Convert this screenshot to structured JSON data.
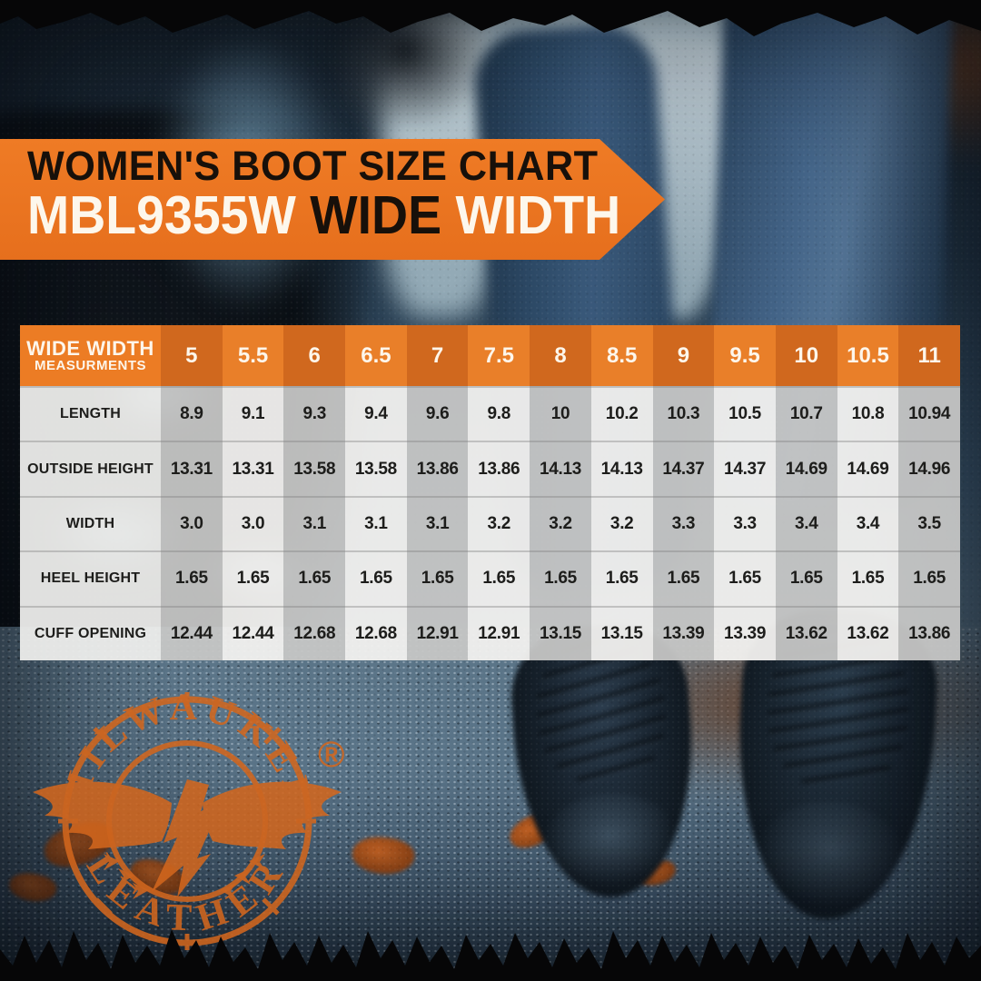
{
  "banner": {
    "title_line1": "WOMEN'S BOOT SIZE CHART",
    "model": "MBL9355W ",
    "highlight": "WIDE ",
    "width_word": "WIDTH"
  },
  "table": {
    "header_label_line1": "WIDE WIDTH",
    "header_label_line2": "MEASURMENTS",
    "sizes": [
      "5",
      "5.5",
      "6",
      "6.5",
      "7",
      "7.5",
      "8",
      "8.5",
      "9",
      "9.5",
      "10",
      "10.5",
      "11"
    ],
    "rows": [
      {
        "label": "LENGTH",
        "values": [
          "8.9",
          "9.1",
          "9.3",
          "9.4",
          "9.6",
          "9.8",
          "10",
          "10.2",
          "10.3",
          "10.5",
          "10.7",
          "10.8",
          "10.94"
        ]
      },
      {
        "label": "OUTSIDE HEIGHT",
        "values": [
          "13.31",
          "13.31",
          "13.58",
          "13.58",
          "13.86",
          "13.86",
          "14.13",
          "14.13",
          "14.37",
          "14.37",
          "14.69",
          "14.69",
          "14.96"
        ]
      },
      {
        "label": "WIDTH",
        "values": [
          "3.0",
          "3.0",
          "3.1",
          "3.1",
          "3.1",
          "3.2",
          "3.2",
          "3.2",
          "3.3",
          "3.3",
          "3.4",
          "3.4",
          "3.5"
        ]
      },
      {
        "label": "HEEL HEIGHT",
        "values": [
          "1.65",
          "1.65",
          "1.65",
          "1.65",
          "1.65",
          "1.65",
          "1.65",
          "1.65",
          "1.65",
          "1.65",
          "1.65",
          "1.65",
          "1.65"
        ]
      },
      {
        "label": "CUFF OPENING",
        "values": [
          "12.44",
          "12.44",
          "12.68",
          "12.68",
          "12.91",
          "12.91",
          "13.15",
          "13.15",
          "13.39",
          "13.39",
          "13.62",
          "13.62",
          "13.86"
        ]
      }
    ]
  },
  "logo": {
    "brand_top": "MILWAUKEE",
    "brand_bottom": "LEATHER",
    "registered": "®"
  },
  "colors": {
    "brand_orange": "#e8731f",
    "header_dark_orange": "#d0681e",
    "header_light_orange": "#e97f29",
    "cell_gray": "#c7c7c6",
    "cell_white": "#f2f1ef",
    "text_dark": "#1d1d1b",
    "banner_text_white": "#fdf7ec"
  },
  "chart_data": {
    "type": "table",
    "title": "WOMEN'S BOOT SIZE CHART MBL9355W WIDE WIDTH",
    "categories": [
      5,
      5.5,
      6,
      6.5,
      7,
      7.5,
      8,
      8.5,
      9,
      9.5,
      10,
      10.5,
      11
    ],
    "categories_label": "WIDE WIDTH MEASURMENTS",
    "series": [
      {
        "name": "LENGTH",
        "values": [
          8.9,
          9.1,
          9.3,
          9.4,
          9.6,
          9.8,
          10,
          10.2,
          10.3,
          10.5,
          10.7,
          10.8,
          10.94
        ]
      },
      {
        "name": "OUTSIDE HEIGHT",
        "values": [
          13.31,
          13.31,
          13.58,
          13.58,
          13.86,
          13.86,
          14.13,
          14.13,
          14.37,
          14.37,
          14.69,
          14.69,
          14.96
        ]
      },
      {
        "name": "WIDTH",
        "values": [
          3.0,
          3.0,
          3.1,
          3.1,
          3.1,
          3.2,
          3.2,
          3.2,
          3.3,
          3.3,
          3.4,
          3.4,
          3.5
        ]
      },
      {
        "name": "HEEL HEIGHT",
        "values": [
          1.65,
          1.65,
          1.65,
          1.65,
          1.65,
          1.65,
          1.65,
          1.65,
          1.65,
          1.65,
          1.65,
          1.65,
          1.65
        ]
      },
      {
        "name": "CUFF OPENING",
        "values": [
          12.44,
          12.44,
          12.68,
          12.68,
          12.91,
          12.91,
          13.15,
          13.15,
          13.39,
          13.39,
          13.62,
          13.62,
          13.86
        ]
      }
    ]
  }
}
